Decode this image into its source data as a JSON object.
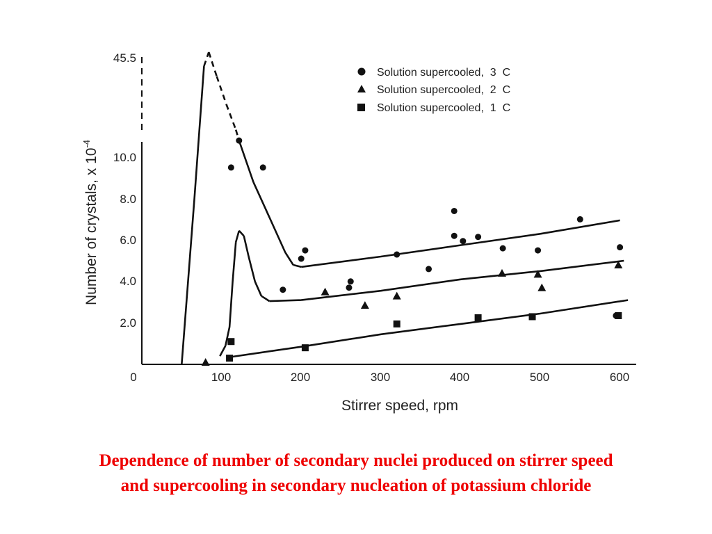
{
  "chart_data": {
    "type": "scatter",
    "xlabel": "Stirrer speed, rpm",
    "ylabel": "Number of crystals, x 10",
    "ylabel_exponent": "-4",
    "x_ticks": [
      "0",
      "100",
      "200",
      "300",
      "400",
      "500",
      "600"
    ],
    "y_ticks": [
      "2.0",
      "4.0",
      "6.0",
      "8.0",
      "10.0"
    ],
    "y_break_label": "45.5",
    "xlim": [
      0,
      620
    ],
    "ylim": [
      0,
      10.8
    ],
    "y_break_value": 45.5,
    "series": [
      {
        "name": "Solution supercooled,  3  C",
        "marker": "circle",
        "points": [
          [
            112,
            9.5
          ],
          [
            122,
            10.8
          ],
          [
            152,
            9.5
          ],
          [
            177,
            3.6
          ],
          [
            200,
            5.1
          ],
          [
            205,
            5.5
          ],
          [
            260,
            3.7
          ],
          [
            262,
            4.0
          ],
          [
            320,
            5.3
          ],
          [
            360,
            4.6
          ],
          [
            392,
            7.4
          ],
          [
            392,
            6.2
          ],
          [
            403,
            5.95
          ],
          [
            422,
            6.15
          ],
          [
            453,
            5.6
          ],
          [
            497,
            5.5
          ],
          [
            550,
            7.0
          ],
          [
            595,
            2.35
          ],
          [
            600,
            5.65
          ]
        ],
        "curve": [
          [
            50,
            0
          ],
          [
            66,
            8
          ],
          [
            72,
            14
          ],
          [
            78,
            40
          ],
          [
            84,
            45.5
          ],
          [
            94,
            36
          ],
          [
            106,
            25
          ],
          [
            118,
            15
          ],
          [
            122,
            10.8
          ],
          [
            140,
            8.8
          ],
          [
            160,
            7.1
          ],
          [
            180,
            5.4
          ],
          [
            190,
            4.8
          ],
          [
            200,
            4.7
          ],
          [
            300,
            5.2
          ],
          [
            400,
            5.75
          ],
          [
            500,
            6.3
          ],
          [
            600,
            6.95
          ]
        ]
      },
      {
        "name": "Solution supercooled,  2  C",
        "marker": "triangle",
        "points": [
          [
            80,
            0.1
          ],
          [
            230,
            3.5
          ],
          [
            280,
            2.85
          ],
          [
            320,
            3.3
          ],
          [
            452,
            4.4
          ],
          [
            497,
            4.35
          ],
          [
            502,
            3.7
          ],
          [
            598,
            4.8
          ]
        ],
        "curve": [
          [
            98,
            0.4
          ],
          [
            105,
            0.9
          ],
          [
            110,
            1.8
          ],
          [
            114,
            4
          ],
          [
            118,
            5.9
          ],
          [
            122,
            6.45
          ],
          [
            128,
            6.2
          ],
          [
            134,
            5.2
          ],
          [
            142,
            4
          ],
          [
            150,
            3.3
          ],
          [
            160,
            3.05
          ],
          [
            200,
            3.1
          ],
          [
            300,
            3.55
          ],
          [
            400,
            4.1
          ],
          [
            500,
            4.5
          ],
          [
            605,
            5.0
          ]
        ]
      },
      {
        "name": "Solution supercooled,  1  C",
        "marker": "square",
        "points": [
          [
            110,
            0.3
          ],
          [
            112,
            1.1
          ],
          [
            205,
            0.8
          ],
          [
            320,
            1.95
          ],
          [
            422,
            2.25
          ],
          [
            490,
            2.3
          ],
          [
            598,
            2.35
          ]
        ],
        "curve": [
          [
            110,
            0.35
          ],
          [
            200,
            0.85
          ],
          [
            300,
            1.45
          ],
          [
            400,
            1.95
          ],
          [
            500,
            2.45
          ],
          [
            610,
            3.1
          ]
        ]
      }
    ],
    "grid": false,
    "legend_position": "top-right"
  },
  "caption": {
    "line1": "Dependence of number of secondary nuclei produced on stirrer speed",
    "line2": "and supercooling in secondary nucleation of potassium chloride"
  },
  "colors": {
    "ink": "#111111",
    "caption": "#ee0000"
  }
}
